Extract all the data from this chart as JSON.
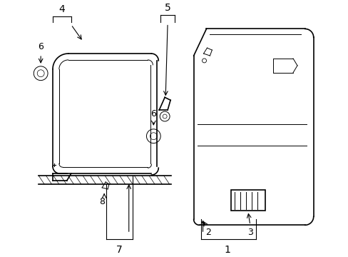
{
  "bg_color": "#ffffff",
  "line_color": "#000000",
  "fig_width": 4.89,
  "fig_height": 3.6,
  "dpi": 100,
  "font_size": 9
}
